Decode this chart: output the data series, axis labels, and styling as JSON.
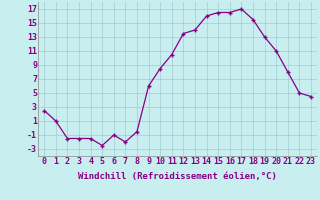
{
  "x": [
    0,
    1,
    2,
    3,
    4,
    5,
    6,
    7,
    8,
    9,
    10,
    11,
    12,
    13,
    14,
    15,
    16,
    17,
    18,
    19,
    20,
    21,
    22,
    23
  ],
  "y": [
    2.5,
    1.0,
    -1.5,
    -1.5,
    -1.5,
    -2.5,
    -1.0,
    -2.0,
    -0.5,
    6.0,
    8.5,
    10.5,
    13.5,
    14.0,
    16.0,
    16.5,
    16.5,
    17.0,
    15.5,
    13.0,
    11.0,
    8.0,
    5.0,
    4.5
  ],
  "line_color": "#880088",
  "marker": "+",
  "background_color": "#c8eef0",
  "grid_color": "#a0ccd0",
  "xlabel": "Windchill (Refroidissement éolien,°C)",
  "ylim": [
    -4,
    18
  ],
  "xlim": [
    -0.5,
    23.5
  ],
  "yticks": [
    -3,
    -1,
    1,
    3,
    5,
    7,
    9,
    11,
    13,
    15,
    17
  ],
  "xtick_labels": [
    "0",
    "1",
    "2",
    "3",
    "4",
    "5",
    "6",
    "7",
    "8",
    "9",
    "10",
    "11",
    "12",
    "13",
    "14",
    "15",
    "16",
    "17",
    "18",
    "19",
    "20",
    "21",
    "22",
    "23"
  ],
  "label_fontsize": 6.5,
  "tick_fontsize": 6.0
}
